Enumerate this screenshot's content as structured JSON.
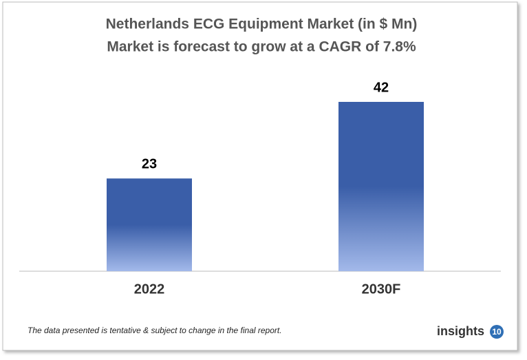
{
  "chart_data": {
    "type": "bar",
    "title": "Netherlands ECG Equipment Market (in $ Mn)",
    "subtitle": "Market is forecast to grow at a CAGR of 7.8%",
    "categories": [
      "2022",
      "2030F"
    ],
    "values": [
      23,
      42
    ],
    "color": "#3a5ea8",
    "footnote": "The data presented is tentative & subject to change in the final report.",
    "logo": {
      "text": "insights",
      "badge": "10"
    }
  }
}
